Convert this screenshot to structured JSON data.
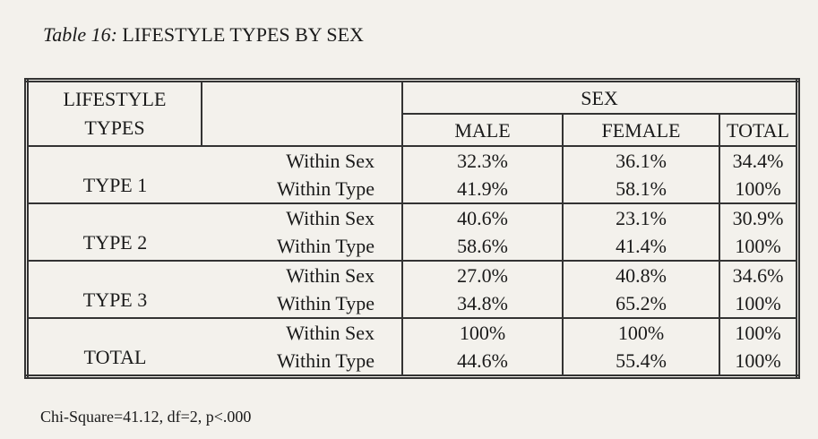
{
  "caption": {
    "label": "Table 16:",
    "text": "LIFESTYLE TYPES BY SEX"
  },
  "table": {
    "row_header": [
      "LIFESTYLE",
      "TYPES"
    ],
    "group_header": "SEX",
    "columns": [
      "MALE",
      "FEMALE",
      "TOTAL"
    ],
    "rows": [
      {
        "type": "TYPE 1",
        "measures": [
          {
            "label": "Within Sex",
            "values": [
              "32.3%",
              "36.1%",
              "34.4%"
            ]
          },
          {
            "label": "Within Type",
            "values": [
              "41.9%",
              "58.1%",
              "100%"
            ]
          }
        ]
      },
      {
        "type": "TYPE 2",
        "measures": [
          {
            "label": "Within Sex",
            "values": [
              "40.6%",
              "23.1%",
              "30.9%"
            ]
          },
          {
            "label": "Within Type",
            "values": [
              "58.6%",
              "41.4%",
              "100%"
            ]
          }
        ]
      },
      {
        "type": "TYPE 3",
        "measures": [
          {
            "label": "Within Sex",
            "values": [
              "27.0%",
              "40.8%",
              "34.6%"
            ]
          },
          {
            "label": "Within Type",
            "values": [
              "34.8%",
              "65.2%",
              "100%"
            ]
          }
        ]
      },
      {
        "type": "TOTAL",
        "measures": [
          {
            "label": "Within Sex",
            "values": [
              "100%",
              "100%",
              "100%"
            ]
          },
          {
            "label": "Within Type",
            "values": [
              "44.6%",
              "55.4%",
              "100%"
            ]
          }
        ]
      }
    ]
  },
  "footnote": "Chi-Square=41.12, df=2, p<.000"
}
